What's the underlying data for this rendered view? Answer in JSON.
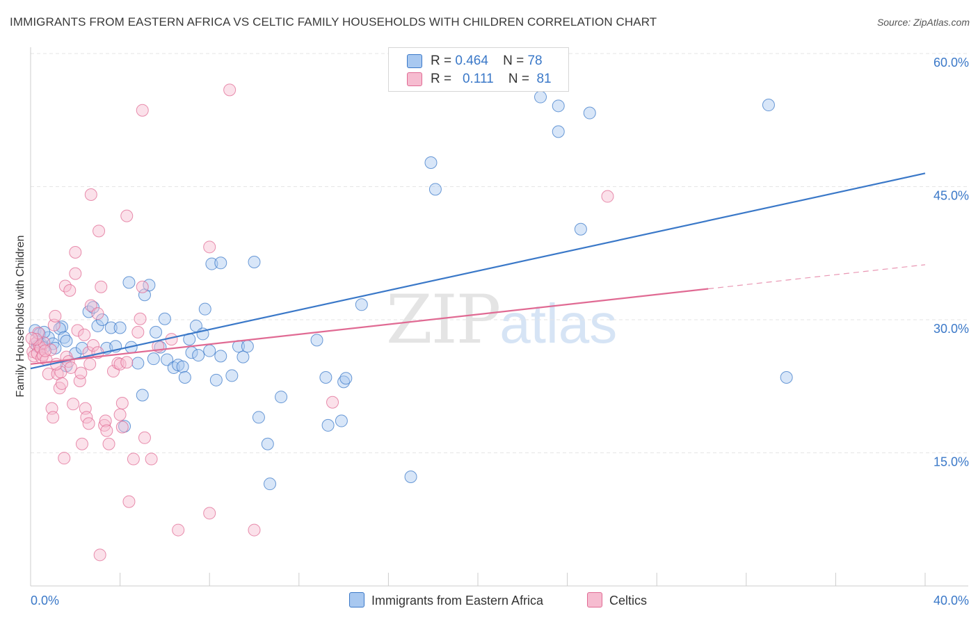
{
  "title": "IMMIGRANTS FROM EASTERN AFRICA VS CELTIC FAMILY HOUSEHOLDS WITH CHILDREN CORRELATION CHART",
  "source": "Source: ZipAtlas.com",
  "watermark": {
    "zip": "ZIP",
    "atlas": "atlas"
  },
  "colors": {
    "blue": "#3a78c8",
    "pink": "#e06a93",
    "blue_fill": "#a8c8f0",
    "pink_fill": "#f6bcd0"
  },
  "legend_top": {
    "rows": [
      {
        "r_label": "R =",
        "r_value": "0.464",
        "n_label": "N =",
        "n_value": "78"
      },
      {
        "r_label": "R =",
        "r_value": "0.111",
        "n_label": "N =",
        "n_value": "81"
      }
    ]
  },
  "legend_bottom": [
    "Immigrants from Eastern Africa",
    "Celtics"
  ],
  "chart_data": {
    "type": "scatter",
    "title": "IMMIGRANTS FROM EASTERN AFRICA VS CELTIC FAMILY HOUSEHOLDS WITH CHILDREN CORRELATION CHART",
    "xlabel": "",
    "ylabel": "Family Households with Children",
    "xlim": [
      0,
      40
    ],
    "ylim": [
      0,
      60
    ],
    "x_tick_labels": [
      "0.0%",
      "40.0%"
    ],
    "y_ticks": [
      15,
      30,
      45,
      60
    ],
    "y_tick_labels": [
      "15.0%",
      "30.0%",
      "45.0%",
      "60.0%"
    ],
    "grid": true,
    "legend": "top-center and bottom",
    "series": [
      {
        "name": "Immigrants from Eastern Africa",
        "color": "#3a78c8",
        "trend": {
          "x": [
            0,
            40
          ],
          "y": [
            24.5,
            46.5
          ],
          "dashed_from": null
        },
        "points": [
          [
            0.2,
            28.8
          ],
          [
            0.3,
            27.5
          ],
          [
            0.4,
            28.4
          ],
          [
            0.5,
            27.2
          ],
          [
            0.6,
            26.9
          ],
          [
            0.8,
            28.0
          ],
          [
            1.0,
            27.3
          ],
          [
            0.6,
            28.6
          ],
          [
            1.4,
            29.2
          ],
          [
            1.3,
            29.0
          ],
          [
            1.5,
            28.0
          ],
          [
            1.6,
            27.6
          ],
          [
            1.1,
            26.8
          ],
          [
            1.6,
            24.8
          ],
          [
            2.0,
            26.2
          ],
          [
            2.3,
            26.8
          ],
          [
            2.6,
            30.9
          ],
          [
            2.8,
            31.4
          ],
          [
            3.0,
            29.3
          ],
          [
            3.2,
            30.0
          ],
          [
            3.6,
            29.1
          ],
          [
            4.0,
            29.1
          ],
          [
            3.4,
            26.8
          ],
          [
            3.8,
            27.0
          ],
          [
            4.2,
            18.0
          ],
          [
            4.4,
            34.2
          ],
          [
            4.5,
            26.9
          ],
          [
            4.8,
            25.1
          ],
          [
            5.0,
            21.5
          ],
          [
            5.1,
            32.8
          ],
          [
            5.3,
            33.9
          ],
          [
            5.5,
            25.6
          ],
          [
            5.6,
            28.6
          ],
          [
            5.8,
            26.9
          ],
          [
            6.0,
            30.1
          ],
          [
            6.1,
            25.5
          ],
          [
            6.4,
            24.6
          ],
          [
            6.6,
            24.9
          ],
          [
            6.8,
            24.7
          ],
          [
            6.9,
            23.5
          ],
          [
            7.1,
            27.8
          ],
          [
            7.2,
            26.3
          ],
          [
            7.4,
            29.3
          ],
          [
            7.5,
            26.0
          ],
          [
            7.7,
            28.4
          ],
          [
            7.8,
            31.2
          ],
          [
            8.0,
            26.5
          ],
          [
            8.1,
            36.3
          ],
          [
            8.3,
            23.2
          ],
          [
            8.5,
            36.4
          ],
          [
            8.5,
            25.9
          ],
          [
            9.0,
            23.7
          ],
          [
            9.3,
            27.0
          ],
          [
            9.5,
            25.8
          ],
          [
            9.7,
            27.0
          ],
          [
            10.0,
            36.5
          ],
          [
            10.2,
            19.0
          ],
          [
            10.6,
            16.0
          ],
          [
            10.7,
            11.5
          ],
          [
            11.2,
            21.3
          ],
          [
            12.8,
            27.7
          ],
          [
            13.2,
            23.5
          ],
          [
            13.3,
            18.1
          ],
          [
            13.9,
            18.6
          ],
          [
            14.0,
            23.0
          ],
          [
            14.1,
            23.4
          ],
          [
            14.8,
            31.7
          ],
          [
            17.0,
            12.3
          ],
          [
            17.9,
            47.7
          ],
          [
            18.1,
            44.7
          ],
          [
            22.8,
            55.1
          ],
          [
            23.6,
            54.1
          ],
          [
            23.6,
            51.2
          ],
          [
            24.6,
            40.2
          ],
          [
            25.0,
            53.3
          ],
          [
            33.0,
            54.2
          ],
          [
            33.8,
            23.5
          ],
          [
            0.3,
            27.0
          ]
        ]
      },
      {
        "name": "Celtics",
        "color": "#e06a93",
        "trend": {
          "x": [
            0,
            40
          ],
          "y": [
            25.0,
            36.2
          ],
          "dashed_from": 30.3
        },
        "points": [
          [
            0.1,
            26.4
          ],
          [
            0.15,
            25.9
          ],
          [
            0.2,
            27.3
          ],
          [
            0.3,
            26.2
          ],
          [
            0.35,
            28.5
          ],
          [
            0.4,
            27.0
          ],
          [
            0.45,
            26.8
          ],
          [
            0.5,
            25.7
          ],
          [
            0.55,
            26.0
          ],
          [
            0.6,
            27.4
          ],
          [
            0.7,
            25.5
          ],
          [
            0.8,
            23.9
          ],
          [
            0.9,
            26.6
          ],
          [
            0.95,
            20.0
          ],
          [
            1.0,
            19.0
          ],
          [
            1.05,
            29.4
          ],
          [
            1.1,
            30.4
          ],
          [
            1.2,
            23.9
          ],
          [
            1.3,
            22.3
          ],
          [
            1.35,
            24.1
          ],
          [
            1.4,
            22.8
          ],
          [
            1.5,
            14.4
          ],
          [
            1.55,
            33.8
          ],
          [
            1.6,
            25.8
          ],
          [
            1.7,
            25.3
          ],
          [
            1.75,
            33.3
          ],
          [
            1.8,
            24.6
          ],
          [
            1.9,
            20.5
          ],
          [
            2.0,
            35.2
          ],
          [
            2.0,
            37.6
          ],
          [
            2.1,
            28.8
          ],
          [
            2.2,
            23.1
          ],
          [
            2.25,
            24.0
          ],
          [
            2.3,
            16.0
          ],
          [
            2.4,
            28.3
          ],
          [
            2.45,
            20.0
          ],
          [
            2.5,
            19.0
          ],
          [
            2.6,
            18.3
          ],
          [
            2.6,
            26.3
          ],
          [
            2.65,
            25.0
          ],
          [
            2.7,
            31.6
          ],
          [
            2.8,
            27.1
          ],
          [
            2.7,
            44.1
          ],
          [
            3.0,
            30.7
          ],
          [
            3.0,
            26.3
          ],
          [
            3.05,
            40.0
          ],
          [
            3.1,
            3.5
          ],
          [
            3.15,
            33.7
          ],
          [
            3.3,
            18.1
          ],
          [
            3.35,
            18.6
          ],
          [
            3.4,
            17.5
          ],
          [
            3.5,
            16.0
          ],
          [
            3.7,
            24.2
          ],
          [
            3.9,
            25.1
          ],
          [
            4.0,
            19.3
          ],
          [
            4.0,
            25.0
          ],
          [
            4.1,
            20.6
          ],
          [
            4.1,
            17.9
          ],
          [
            4.3,
            25.2
          ],
          [
            4.3,
            41.7
          ],
          [
            4.4,
            9.5
          ],
          [
            4.6,
            14.3
          ],
          [
            4.8,
            28.6
          ],
          [
            4.9,
            30.1
          ],
          [
            5.0,
            33.7
          ],
          [
            5.0,
            53.6
          ],
          [
            5.1,
            16.7
          ],
          [
            5.4,
            14.3
          ],
          [
            5.7,
            27.0
          ],
          [
            6.3,
            27.8
          ],
          [
            6.6,
            6.3
          ],
          [
            8.0,
            38.2
          ],
          [
            8.0,
            8.2
          ],
          [
            8.9,
            55.9
          ],
          [
            10.0,
            6.3
          ],
          [
            13.5,
            20.7
          ],
          [
            25.8,
            43.9
          ],
          [
            0.25,
            27.8
          ],
          [
            0.65,
            26.5
          ],
          [
            1.15,
            25.0
          ],
          [
            0.05,
            27.9
          ]
        ]
      }
    ]
  }
}
